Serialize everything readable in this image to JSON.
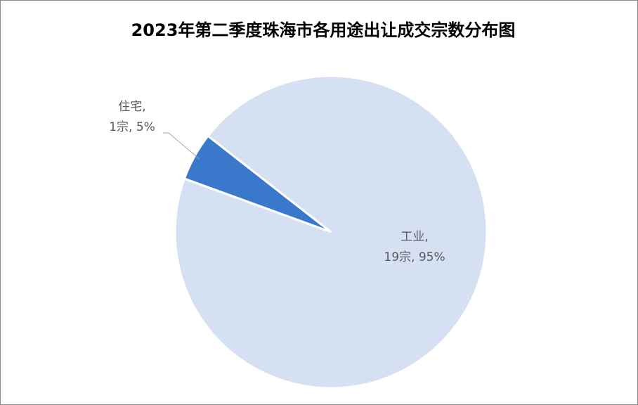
{
  "chart_data": {
    "type": "pie",
    "title": "2023年第二季度珠海市各用途出让成交宗数分布图",
    "categories": [
      "住宅,",
      "工业,"
    ],
    "values": [
      1,
      19
    ],
    "value_labels": [
      "1宗, 5%",
      "19宗, 95%"
    ],
    "colors": [
      "#3a78cc",
      "#d5e0f2"
    ]
  }
}
